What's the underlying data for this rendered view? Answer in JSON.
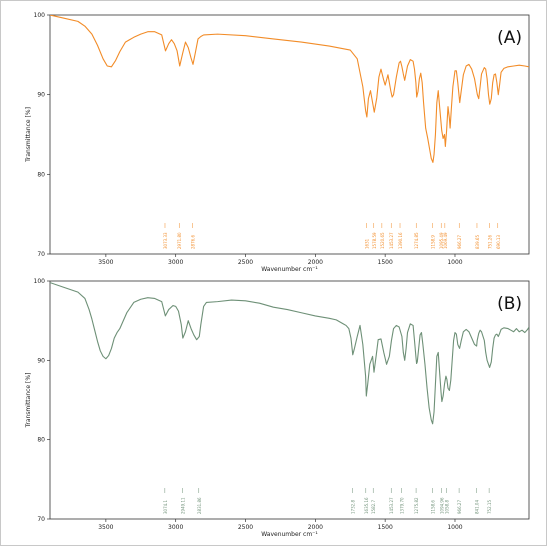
{
  "chart_data": [
    {
      "type": "line",
      "panel_label": "(A)",
      "color": "#f28c28",
      "xlabel": "Wavenumber cm⁻¹",
      "ylabel": "Transmittance [%]",
      "xlim": [
        3900,
        470
      ],
      "ylim": [
        70,
        100
      ],
      "xticks": [
        3500,
        3000,
        2500,
        2000,
        1500,
        1000
      ],
      "yticks": [
        70,
        80,
        90,
        100
      ],
      "grid": false,
      "series": [
        {
          "x": [
            3900,
            3800,
            3700,
            3650,
            3600,
            3560,
            3520,
            3490,
            3460,
            3430,
            3400,
            3360,
            3300,
            3250,
            3200,
            3150,
            3100,
            3073,
            3050,
            3030,
            3010,
            2990,
            2971,
            2950,
            2930,
            2910,
            2890,
            2876,
            2860,
            2840,
            2820,
            2800,
            2700,
            2500,
            2300,
            2100,
            1900,
            1750,
            1700,
            1660,
            1640,
            1631,
            1620,
            1605,
            1578,
            1560,
            1545,
            1530,
            1520,
            1510,
            1500,
            1480,
            1460,
            1450,
            1440,
            1420,
            1400,
            1390,
            1380,
            1370,
            1360,
            1340,
            1320,
            1300,
            1290,
            1280,
            1274,
            1265,
            1255,
            1245,
            1235,
            1225,
            1210,
            1195,
            1180,
            1170,
            1158,
            1150,
            1140,
            1130,
            1120,
            1110,
            1095,
            1085,
            1075,
            1069,
            1060,
            1050,
            1040,
            1035,
            1025,
            1015,
            1000,
            990,
            980,
            966,
            955,
            940,
            920,
            900,
            880,
            860,
            840,
            830,
            820,
            810,
            790,
            780,
            770,
            760,
            751,
            740,
            730,
            720,
            710,
            700,
            690,
            680,
            670,
            650,
            620,
            580,
            540,
            500,
            470
          ],
          "y": [
            100,
            99.6,
            99.2,
            98.6,
            97.6,
            96.2,
            94.5,
            93.6,
            93.5,
            94.3,
            95.4,
            96.6,
            97.2,
            97.6,
            97.9,
            97.9,
            97.5,
            95.5,
            96.4,
            96.9,
            96.4,
            95.5,
            93.6,
            95.2,
            96.6,
            95.9,
            94.6,
            93.8,
            95.2,
            97.0,
            97.3,
            97.5,
            97.6,
            97.4,
            97.0,
            96.6,
            96.1,
            95.6,
            94.5,
            91.0,
            88.0,
            87.2,
            89.5,
            90.5,
            87.8,
            89.6,
            92.2,
            93.2,
            92.5,
            91.8,
            91.2,
            92.5,
            90.5,
            89.7,
            90.0,
            92.2,
            94.0,
            94.2,
            93.5,
            92.6,
            91.8,
            93.6,
            94.4,
            94.2,
            93.2,
            91.5,
            89.7,
            90.4,
            92.0,
            92.7,
            91.5,
            89.0,
            85.8,
            84.5,
            83.0,
            82.0,
            81.5,
            82.5,
            85.0,
            89.0,
            90.5,
            88.5,
            85.5,
            84.5,
            85.0,
            83.5,
            85.5,
            88.5,
            87.0,
            85.8,
            88.5,
            91.0,
            93.0,
            93.0,
            91.5,
            89.0,
            90.5,
            92.5,
            93.6,
            93.8,
            93.2,
            92.0,
            90.0,
            89.5,
            91.0,
            92.6,
            93.4,
            93.2,
            92.0,
            90.0,
            88.8,
            89.5,
            91.5,
            92.5,
            92.6,
            91.5,
            90.0,
            91.3,
            92.8,
            93.3,
            93.5,
            93.6,
            93.7,
            93.6,
            93.5
          ]
        }
      ],
      "peak_labels": [
        {
          "x": 3073,
          "text": "3073.33"
        },
        {
          "x": 2971,
          "text": "2971.80"
        },
        {
          "x": 2876,
          "text": "2876.6"
        },
        {
          "x": 1631,
          "text": "1631"
        },
        {
          "x": 1578,
          "text": "1578.59"
        },
        {
          "x": 1520,
          "text": "1520.65"
        },
        {
          "x": 1453,
          "text": "1453.27"
        },
        {
          "x": 1390,
          "text": "1390.16"
        },
        {
          "x": 1274,
          "text": "1274.85"
        },
        {
          "x": 1158,
          "text": "1158.9"
        },
        {
          "x": 1095,
          "text": "1095.49"
        },
        {
          "x": 1069,
          "text": "1069.49"
        },
        {
          "x": 966,
          "text": "966.27"
        },
        {
          "x": 839,
          "text": "839.65"
        },
        {
          "x": 751,
          "text": "751.26"
        },
        {
          "x": 690,
          "text": "690.13"
        }
      ]
    },
    {
      "type": "line",
      "panel_label": "(B)",
      "color": "#6e9077",
      "xlabel": "Wavenumber cm⁻¹",
      "ylabel": "Transmittance [%]",
      "xlim": [
        3900,
        470
      ],
      "ylim": [
        70,
        100
      ],
      "xticks": [
        3500,
        3000,
        2500,
        2000,
        1500,
        1000
      ],
      "yticks": [
        70,
        80,
        90,
        100
      ],
      "grid": false,
      "series": [
        {
          "x": [
            3900,
            3800,
            3700,
            3650,
            3620,
            3600,
            3580,
            3560,
            3540,
            3520,
            3500,
            3480,
            3460,
            3440,
            3420,
            3400,
            3380,
            3350,
            3300,
            3250,
            3200,
            3150,
            3100,
            3074,
            3050,
            3020,
            3000,
            2980,
            2960,
            2949,
            2930,
            2910,
            2890,
            2870,
            2850,
            2831,
            2820,
            2800,
            2780,
            2700,
            2600,
            2500,
            2400,
            2300,
            2200,
            2100,
            2000,
            1900,
            1850,
            1800,
            1780,
            1760,
            1745,
            1735,
            1732,
            1720,
            1700,
            1680,
            1660,
            1640,
            1635,
            1625,
            1610,
            1590,
            1580,
            1565,
            1550,
            1530,
            1510,
            1490,
            1470,
            1455,
            1440,
            1420,
            1400,
            1380,
            1370,
            1360,
            1350,
            1340,
            1320,
            1300,
            1290,
            1280,
            1275,
            1270,
            1260,
            1250,
            1240,
            1230,
            1215,
            1200,
            1185,
            1170,
            1160,
            1150,
            1140,
            1130,
            1120,
            1110,
            1100,
            1094,
            1085,
            1075,
            1065,
            1058,
            1050,
            1040,
            1030,
            1020,
            1010,
            1000,
            990,
            980,
            967,
            955,
            940,
            920,
            900,
            880,
            860,
            845,
            841,
            830,
            820,
            810,
            790,
            780,
            770,
            760,
            752,
            740,
            730,
            720,
            710,
            700,
            690,
            680,
            670,
            650,
            620,
            600,
            580,
            560,
            540,
            520,
            500,
            480,
            470
          ],
          "y": [
            99.8,
            99.2,
            98.6,
            97.8,
            96.4,
            95.2,
            93.8,
            92.4,
            91.2,
            90.5,
            90.2,
            90.6,
            91.5,
            92.8,
            93.5,
            94.0,
            94.8,
            96.0,
            97.3,
            97.7,
            97.9,
            97.8,
            97.4,
            95.6,
            96.4,
            96.9,
            96.8,
            96.2,
            94.5,
            92.8,
            93.6,
            95.0,
            94.0,
            93.2,
            92.6,
            93.0,
            94.5,
            96.8,
            97.3,
            97.4,
            97.6,
            97.5,
            97.2,
            96.7,
            96.4,
            96.0,
            95.6,
            95.3,
            95.1,
            94.6,
            94.4,
            94.0,
            92.8,
            91.2,
            90.7,
            91.5,
            93.0,
            94.4,
            92.0,
            88.0,
            85.5,
            87.0,
            89.5,
            90.5,
            88.5,
            90.5,
            92.6,
            92.7,
            91.0,
            89.5,
            90.5,
            92.5,
            94.0,
            94.4,
            94.2,
            93.0,
            91.0,
            90.0,
            91.5,
            93.5,
            94.6,
            94.4,
            92.5,
            90.5,
            89.6,
            89.8,
            91.5,
            93.2,
            93.5,
            92.0,
            89.5,
            86.5,
            84.0,
            82.5,
            82.0,
            83.5,
            87.0,
            90.5,
            91.0,
            88.5,
            86.0,
            84.8,
            85.5,
            87.0,
            88.0,
            87.6,
            86.5,
            86.2,
            87.5,
            90.0,
            92.5,
            93.5,
            93.3,
            92.0,
            91.5,
            92.5,
            93.6,
            93.9,
            93.6,
            92.8,
            92.0,
            91.8,
            92.5,
            93.4,
            93.8,
            93.6,
            92.5,
            91.0,
            90.0,
            89.5,
            89.1,
            89.8,
            91.5,
            92.8,
            93.2,
            93.3,
            93.0,
            93.4,
            93.9,
            94.1,
            94.0,
            93.8,
            93.6,
            94.0,
            93.6,
            93.8,
            93.5,
            93.9,
            94.2
          ]
        }
      ],
      "peak_labels": [
        {
          "x": 3074,
          "text": "3074.1"
        },
        {
          "x": 2949,
          "text": "2949.11"
        },
        {
          "x": 2831,
          "text": "2831.86"
        },
        {
          "x": 1732,
          "text": "1732.8"
        },
        {
          "x": 1635,
          "text": "1635.16"
        },
        {
          "x": 1582,
          "text": "1582.7"
        },
        {
          "x": 1453,
          "text": "1453.27"
        },
        {
          "x": 1379,
          "text": "1379.70"
        },
        {
          "x": 1275,
          "text": "1275.82"
        },
        {
          "x": 1158,
          "text": "1158.6"
        },
        {
          "x": 1094,
          "text": "1094.96"
        },
        {
          "x": 1058,
          "text": "1058.8"
        },
        {
          "x": 967,
          "text": "966.27"
        },
        {
          "x": 841,
          "text": "841.04"
        },
        {
          "x": 752,
          "text": "752.15"
        }
      ]
    }
  ]
}
